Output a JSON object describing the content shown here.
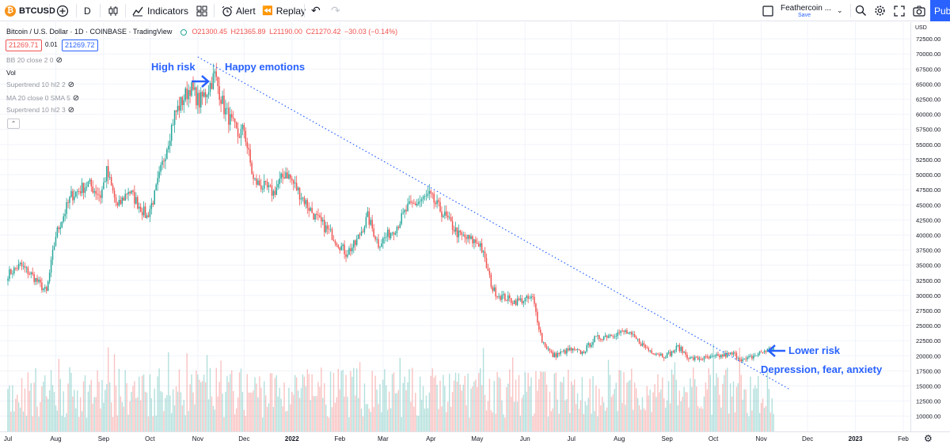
{
  "toolbar": {
    "symbol": "BTCUSD",
    "add_symbol": "+",
    "interval": "D",
    "chart_type_icon": "candles-icon",
    "indicators_label": "Indicators",
    "layout_icon": "grid-icon",
    "alert_label": "Alert",
    "replay_label": "Replay",
    "undo_icon": "undo-icon",
    "redo_icon": "redo-icon",
    "layout_name": "Feathercoin ...",
    "layout_save": "Save",
    "publish_label": "Pub"
  },
  "legend": {
    "title": "Bitcoin / U.S. Dollar · 1D · COINBASE · TradingView",
    "o": "O21300.45",
    "h": "H21365.89",
    "l": "L21190.00",
    "c": "C21270.42",
    "change": "−30.03 (−0.14%)",
    "bid": "21269.71",
    "spread": "0.01",
    "ask": "21269.72",
    "indicators": [
      "BB 20 close 2 0",
      "Vol",
      "Supertrend 10 hl2 2",
      "MA 20 close 0 SMA 5",
      "Supertrend 10 hl2 3"
    ]
  },
  "annotations": {
    "high_risk": "High risk",
    "happy": "Happy emotions",
    "lower_risk": "Lower risk",
    "depression": "Depression, fear, anxiety"
  },
  "colors": {
    "up": "#26a69a",
    "down": "#ef5350",
    "annotation": "#2962ff",
    "trendline": "#2962ff"
  },
  "chart_data": {
    "type": "candlestick",
    "currency": "USD",
    "ylim": [
      8000,
      75000
    ],
    "yticks": [
      "10000.00",
      "12500.00",
      "15000.00",
      "17500.00",
      "20000.00",
      "22500.00",
      "25000.00",
      "27500.00",
      "30000.00",
      "32500.00",
      "35000.00",
      "37500.00",
      "40000.00",
      "42500.00",
      "45000.00",
      "47500.00",
      "50000.00",
      "52500.00",
      "55000.00",
      "57500.00",
      "60000.00",
      "62500.00",
      "65000.00",
      "67500.00",
      "70000.00",
      "72500.00"
    ],
    "ytick_values": [
      10000,
      12500,
      15000,
      17500,
      20000,
      22500,
      25000,
      27500,
      30000,
      32500,
      35000,
      37500,
      40000,
      42500,
      45000,
      47500,
      50000,
      52500,
      55000,
      57500,
      60000,
      62500,
      65000,
      67500,
      70000,
      72500
    ],
    "xticks": [
      "Jul",
      "Aug",
      "Sep",
      "Oct",
      "Nov",
      "Dec",
      "2022",
      "Feb",
      "Mar",
      "Apr",
      "May",
      "Jun",
      "Jul",
      "Aug",
      "Sep",
      "Oct",
      "Nov",
      "Dec",
      "2023",
      "Feb"
    ],
    "xtick_days": [
      0,
      31,
      62,
      92,
      123,
      153,
      184,
      215,
      243,
      274,
      304,
      335,
      365,
      396,
      427,
      457,
      488,
      518,
      549,
      580
    ],
    "price_path": [
      [
        0,
        33500
      ],
      [
        8,
        35000
      ],
      [
        15,
        33500
      ],
      [
        25,
        30500
      ],
      [
        31,
        40000
      ],
      [
        41,
        46500
      ],
      [
        52,
        48500
      ],
      [
        60,
        46500
      ],
      [
        64,
        50500
      ],
      [
        71,
        44500
      ],
      [
        78,
        47500
      ],
      [
        90,
        43000
      ],
      [
        95,
        46500
      ],
      [
        108,
        60000
      ],
      [
        118,
        64500
      ],
      [
        124,
        62000
      ],
      [
        128,
        63500
      ],
      [
        134,
        66500
      ],
      [
        140,
        61000
      ],
      [
        149,
        56500
      ],
      [
        153,
        57500
      ],
      [
        159,
        49000
      ],
      [
        172,
        47000
      ],
      [
        180,
        50500
      ],
      [
        190,
        46500
      ],
      [
        199,
        43000
      ],
      [
        210,
        40000
      ],
      [
        219,
        37000
      ],
      [
        225,
        38500
      ],
      [
        233,
        43000
      ],
      [
        240,
        38500
      ],
      [
        252,
        41500
      ],
      [
        259,
        44500
      ],
      [
        273,
        46500
      ],
      [
        282,
        43500
      ],
      [
        292,
        40000
      ],
      [
        306,
        38500
      ],
      [
        314,
        31000
      ],
      [
        318,
        30000
      ],
      [
        328,
        29000
      ],
      [
        340,
        29500
      ],
      [
        346,
        22500
      ],
      [
        353,
        20000
      ],
      [
        364,
        21000
      ],
      [
        372,
        20500
      ],
      [
        380,
        22800
      ],
      [
        390,
        23500
      ],
      [
        400,
        24000
      ],
      [
        408,
        22500
      ],
      [
        415,
        21000
      ],
      [
        425,
        20000
      ],
      [
        430,
        20500
      ],
      [
        434,
        21500
      ],
      [
        442,
        19500
      ],
      [
        455,
        19600
      ],
      [
        462,
        20000
      ],
      [
        470,
        20300
      ],
      [
        477,
        19200
      ],
      [
        490,
        20800
      ],
      [
        496,
        21270
      ]
    ],
    "trendline": [
      [
        123,
        69500
      ],
      [
        506,
        14500
      ]
    ],
    "last_price": 21270.42,
    "volume_range": [
      0,
      16000
    ]
  }
}
